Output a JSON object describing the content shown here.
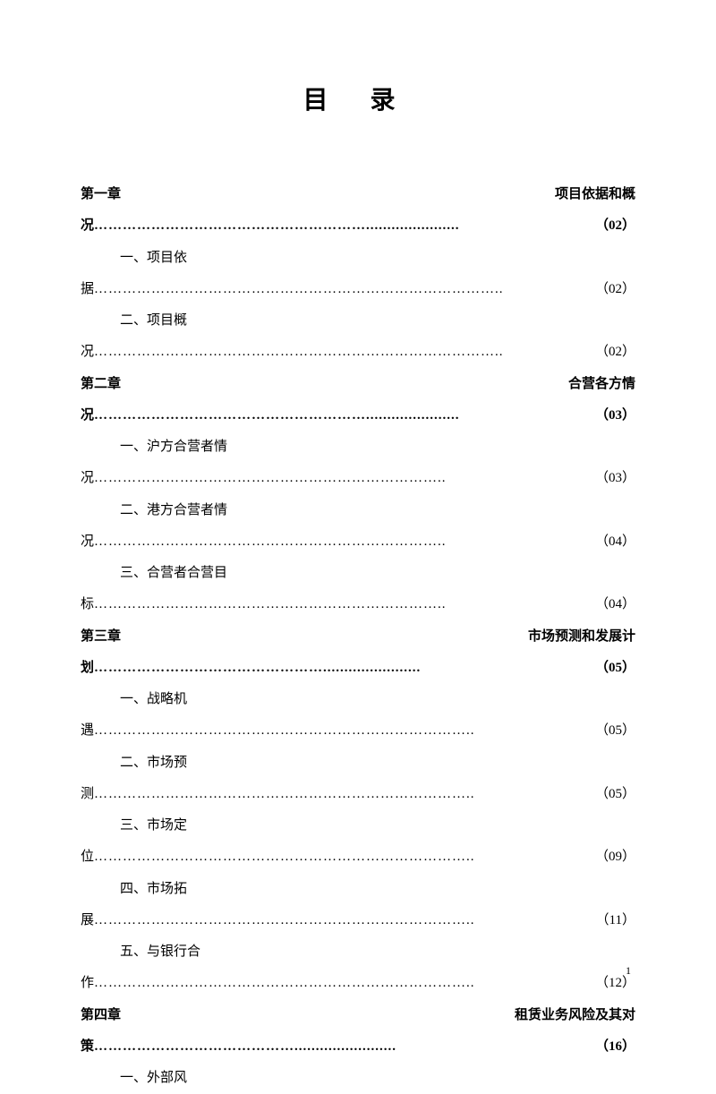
{
  "title": "目   录",
  "pageNumber": "1",
  "chapters": [
    {
      "label": "第一章",
      "titleRight": "项目依据和概",
      "contText": "况",
      "dots": "…………………………………………………......................",
      "pageRef": "（02）",
      "subs": [
        {
          "line1": "一、项目依",
          "line2": "据",
          "dots": "…………………………………………………………………………..",
          "pageRef": "（02）"
        },
        {
          "line1": "二、项目概",
          "line2": "况",
          "dots": "…………………………………………………………………………..",
          "pageRef": "（02）"
        }
      ]
    },
    {
      "label": "第二章",
      "titleRight": "合营各方情",
      "contText": "况",
      "dots": "…………………………………………………......................",
      "pageRef": "（03）",
      "subs": [
        {
          "line1": "一、沪方合营者情",
          "line2": "况",
          "dots": "………………………………………………………………..",
          "pageRef": " （03）"
        },
        {
          "line1": "二、港方合营者情",
          "line2": "况",
          "dots": "………………………………………………………………..",
          "pageRef": " （04）"
        },
        {
          "line1": "三、合营者合营目",
          "line2": "标",
          "dots": "………………………………………………………………..",
          "pageRef": " （04）"
        }
      ]
    },
    {
      "label": "第三章",
      "titleRight": "市场预测和发展计",
      "contText": "划",
      "dots": "………………………………………….......................",
      "pageRef": "（05）",
      "subs": [
        {
          "line1": "一、战略机",
          "line2": "遇",
          "dots": "……………………………………………………………………..",
          "pageRef": "（05）"
        },
        {
          "line1": "二、市场预",
          "line2": "测",
          "dots": "……………………………………………………………………..",
          "pageRef": "（05）"
        },
        {
          "line1": "三、市场定",
          "line2": "位",
          "dots": "……………………………………………………………………..",
          "pageRef": "（09）"
        },
        {
          "line1": "四、市场拓",
          "line2": "展",
          "dots": "……………………………………………………………………..",
          "pageRef": "（11）"
        },
        {
          "line1": "五、与银行合",
          "line2": "作",
          "dots": "……………………………………………………………………..",
          "pageRef": "（12）"
        }
      ]
    },
    {
      "label": "第四章",
      "titleRight": "租赁业务风险及其对",
      "contText": "策",
      "dots": "……………………………………........................",
      "pageRef": "（16）",
      "subs": [
        {
          "line1": "一、外部风",
          "line2": "",
          "dots": "",
          "pageRef": ""
        }
      ]
    }
  ]
}
